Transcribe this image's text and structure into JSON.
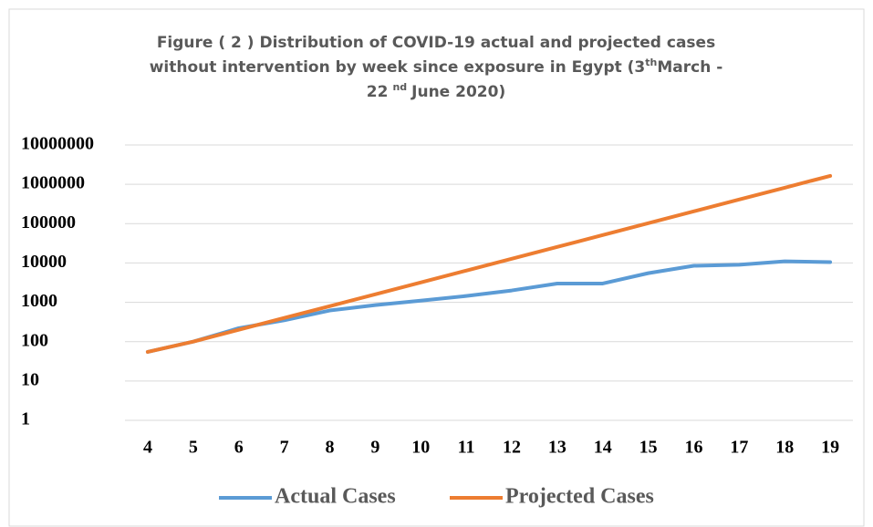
{
  "chart_data": {
    "type": "line",
    "title": [
      "Figure ( 2 ) Distribution of  COVID-19 actual  and projected cases",
      "without intervention by week since exposure in Egypt (3",
      "th",
      "March -",
      "22",
      "nd",
      "June 2020)"
    ],
    "categories": [
      "4",
      "5",
      "6",
      "7",
      "8",
      "9",
      "10",
      "11",
      "12",
      "13",
      "14",
      "15",
      "16",
      "17",
      "18",
      "19"
    ],
    "series": [
      {
        "name": "Actual Cases",
        "color": "#5b9bd5",
        "values": [
          55,
          100,
          220,
          350,
          620,
          850,
          1100,
          1450,
          2000,
          3000,
          3000,
          5500,
          8500,
          9000,
          11000,
          10500
        ]
      },
      {
        "name": "Projected Cases",
        "color": "#ed7d31",
        "values": [
          55,
          100,
          200,
          400,
          800,
          1600,
          3200,
          6400,
          12800,
          25600,
          51200,
          102400,
          204800,
          409600,
          819200,
          1638400
        ]
      }
    ],
    "ylim": [
      1,
      10000000
    ],
    "yticks": [
      1,
      10,
      100,
      1000,
      10000,
      100000,
      1000000,
      10000000
    ],
    "log_scale": true,
    "grid": true,
    "legend": "bottom"
  }
}
